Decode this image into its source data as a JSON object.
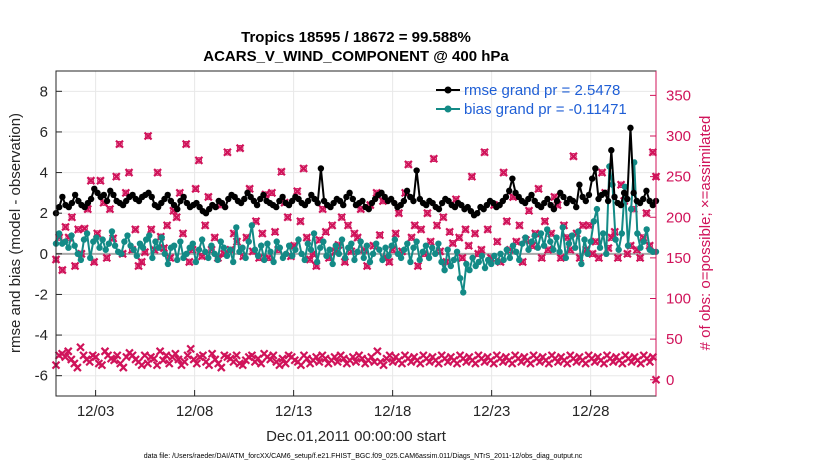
{
  "chart_data": {
    "type": "line",
    "title_line1": "Tropics 18595 / 18672 = 99.588%",
    "title_line2": "ACARS_V_WIND_COMPONENT @ 400 hPa",
    "xlabel": "Dec.01,2011 00:00:00 start",
    "ylabel_left": "rmse and bias (model - observation)",
    "ylabel_right": "# of obs: o=possible; ×=assimilated",
    "footnote": "data file: /Users/raeder/DAI/ATM_forcXX/CAM6_setup/f.e21.FHIST_BGC.f09_025.CAM6assim.011/Diags_NTrS_2011-12/obs_diag_output.nc",
    "x_tick_labels": [
      "12/03",
      "12/08",
      "12/13",
      "12/18",
      "12/23",
      "12/28"
    ],
    "x_tick_days": [
      3,
      8,
      13,
      18,
      23,
      28
    ],
    "xlim_days": [
      1,
      31.3
    ],
    "ylim_left": [
      -7,
      9
    ],
    "y_ticks_left": [
      -6,
      -4,
      -2,
      0,
      2,
      4,
      6,
      8
    ],
    "ylim_right": [
      -20,
      380
    ],
    "y_ticks_right": [
      0,
      50,
      100,
      150,
      200,
      250,
      300,
      350
    ],
    "legend_position": "top-right",
    "colors": {
      "rmse": "#000000",
      "bias": "#138a86",
      "obs": "#d0135a",
      "zero_line": "#aaaaaa",
      "legend_text": "#1f5fd6",
      "right_axis": "#d0135a"
    },
    "series": [
      {
        "name": "rmse grand pr = 2.5478",
        "values": [
          2.0,
          2.3,
          2.8,
          2.4,
          2.3,
          2.5,
          2.9,
          2.6,
          2.4,
          2.3,
          2.5,
          2.7,
          3.2,
          3.0,
          2.8,
          2.9,
          2.6,
          3.1,
          2.9,
          2.6,
          2.5,
          2.4,
          2.6,
          2.8,
          2.9,
          2.7,
          2.6,
          2.8,
          2.9,
          3.0,
          2.8,
          2.4,
          2.3,
          2.5,
          2.7,
          2.9,
          2.6,
          2.4,
          2.2,
          2.6,
          2.8,
          2.5,
          2.3,
          2.4,
          2.5,
          2.3,
          2.1,
          2.0,
          2.2,
          2.4,
          2.3,
          2.6,
          2.5,
          2.3,
          2.7,
          2.9,
          2.8,
          2.6,
          2.5,
          2.7,
          3.0,
          2.8,
          2.6,
          2.4,
          2.7,
          2.9,
          2.6,
          2.5,
          2.4,
          2.3,
          2.6,
          2.8,
          2.5,
          2.4,
          2.6,
          2.8,
          2.7,
          2.5,
          2.4,
          2.6,
          2.9,
          2.7,
          2.5,
          4.2,
          2.6,
          2.4,
          2.3,
          2.5,
          2.7,
          2.6,
          2.4,
          2.8,
          3.0,
          2.7,
          2.4,
          2.5,
          2.6,
          2.3,
          2.2,
          2.5,
          2.7,
          2.9,
          3.0,
          2.8,
          2.6,
          2.7,
          2.5,
          2.3,
          2.4,
          2.6,
          3.1,
          2.8,
          2.6,
          4.1,
          2.7,
          2.5,
          2.4,
          2.6,
          2.5,
          2.3,
          2.2,
          2.5,
          2.7,
          2.6,
          2.4,
          2.3,
          2.5,
          2.4,
          2.2,
          2.3,
          2.1,
          1.9,
          2.0,
          2.3,
          2.2,
          2.4,
          2.6,
          2.5,
          2.3,
          2.4,
          2.6,
          2.8,
          3.1,
          3.7,
          3.0,
          2.8,
          2.6,
          2.5,
          2.7,
          2.9,
          2.6,
          2.4,
          2.3,
          2.5,
          2.7,
          2.4,
          2.2,
          2.6,
          3.0,
          2.8,
          2.5,
          2.7,
          2.6,
          2.3,
          3.4,
          2.8,
          2.6,
          2.9,
          3.7,
          4.2,
          2.7,
          2.9,
          3.0,
          2.6,
          5.1,
          2.8,
          2.5,
          2.4,
          3.0,
          2.7,
          6.2,
          3.0,
          2.6,
          2.5,
          2.7,
          3.1,
          2.6,
          2.4,
          2.6
        ]
      },
      {
        "name": "bias grand pr = -0.11471",
        "values": [
          0.5,
          1.0,
          0.5,
          0.6,
          0.3,
          0.9,
          0.4,
          0.0,
          -0.3,
          0.7,
          1.0,
          -0.2,
          0.6,
          0.8,
          0.3,
          0.7,
          0.2,
          0.5,
          1.1,
          0.4,
          0.1,
          0.0,
          0.6,
          0.9,
          0.4,
          0.2,
          -0.1,
          0.5,
          0.3,
          0.7,
          0.9,
          -0.2,
          0.6,
          0.3,
          0.8,
          0.0,
          -0.5,
          0.3,
          0.4,
          -0.3,
          0.6,
          -0.2,
          0.0,
          0.3,
          0.5,
          -0.4,
          0.2,
          0.7,
          0.1,
          -0.2,
          0.4,
          0.0,
          -0.3,
          0.6,
          0.3,
          -0.1,
          0.2,
          -0.4,
          1.3,
          0.1,
          0.3,
          -0.2,
          0.6,
          1.4,
          0.2,
          -0.1,
          0.4,
          -0.3,
          0.5,
          0.1,
          -0.4,
          0.6,
          0.3,
          -0.2,
          0.0,
          0.4,
          -0.1,
          0.2,
          0.7,
          0.0,
          -0.3,
          0.5,
          0.2,
          1.0,
          -0.4,
          0.3,
          0.6,
          -0.1,
          0.2,
          -0.5,
          0.4,
          0.0,
          0.7,
          -0.2,
          0.3,
          0.5,
          -0.3,
          0.1,
          0.6,
          -0.2,
          0.4,
          -0.4,
          0.0,
          0.5,
          0.2,
          -0.3,
          0.3,
          -0.1,
          0.4,
          0.7,
          0.0,
          -0.2,
          0.2,
          0.5,
          -0.4,
          0.3,
          0.6,
          -0.3,
          0.1,
          0.4,
          -0.2,
          0.3,
          0.0,
          0.5,
          -0.4,
          -0.8,
          0.2,
          -0.6,
          -0.3,
          0.1,
          -1.2,
          -1.9,
          -0.5,
          -0.8,
          -0.2,
          -0.6,
          -0.4,
          -0.1,
          -0.7,
          -0.3,
          -0.5,
          -0.1,
          -0.4,
          0.0,
          -0.3,
          0.2,
          -0.2,
          0.4,
          0.1,
          -0.3,
          0.5,
          0.8,
          0.2,
          0.6,
          0.9,
          0.3,
          1.0,
          0.4,
          1.2,
          0.6,
          0.2,
          0.8,
          0.1,
          1.3,
          -0.2,
          0.5,
          0.9,
          0.3,
          1.1,
          -0.5,
          0.7,
          0.0,
          0.6,
          1.6,
          2.2,
          0.3,
          1.0,
          0.0,
          4.3,
          3.4,
          0.7,
          0.2,
          1.0,
          3.3,
          0.4,
          2.2,
          4.5,
          1.0,
          0.3,
          0.6,
          1.2,
          0.2,
          0.1,
          0.1
        ]
      },
      {
        "name": "observations possible",
        "marker": "o",
        "values": [
          148,
          175,
          135,
          188,
          175,
          200,
          140,
          185,
          155,
          186,
          210,
          245,
          145,
          180,
          245,
          218,
          150,
          210,
          174,
          250,
          290,
          155,
          230,
          255,
          160,
          185,
          140,
          145,
          157,
          300,
          185,
          160,
          255,
          176,
          162,
          190,
          150,
          208,
          200,
          230,
          180,
          290,
          145,
          160,
          235,
          270,
          152,
          190,
          225,
          160,
          175,
          150,
          215,
          155,
          280,
          160,
          180,
          170,
          285,
          152,
          175,
          235,
          158,
          195,
          150,
          180,
          228,
          150,
          230,
          182,
          160,
          256,
          218,
          200,
          152,
          165,
          232,
          195,
          260,
          175,
          148,
          155,
          140,
          172,
          210,
          182,
          150,
          190,
          158,
          166,
          200,
          145,
          190,
          158,
          180,
          175,
          210,
          160,
          140,
          215,
          165,
          230,
          178,
          220,
          150,
          145,
          160,
          180,
          205,
          158,
          230,
          265,
          175,
          190,
          140,
          185,
          155,
          205,
          170,
          272,
          190,
          158,
          200,
          145,
          182,
          168,
          222,
          175,
          150,
          185,
          165,
          250,
          180,
          155,
          160,
          280,
          185,
          150,
          215,
          170,
          145,
          255,
          195,
          160,
          225,
          170,
          190,
          145,
          172,
          208,
          165,
          180,
          235,
          150,
          195,
          160,
          180,
          225,
          215,
          150,
          190,
          175,
          160,
          275,
          180,
          150,
          190,
          160,
          190,
          155,
          170,
          150,
          255,
          230,
          162,
          175,
          182,
          150,
          240,
          220,
          155,
          165,
          210,
          160,
          150,
          175,
          205,
          165,
          280,
          250
        ]
      },
      {
        "name": "observations assimilated",
        "marker": "x",
        "values": [
          18,
          30,
          32,
          28,
          35,
          25,
          20,
          15,
          40,
          30,
          25,
          22,
          30,
          28,
          20,
          18,
          35,
          30,
          26,
          24,
          30,
          20,
          15,
          28,
          33,
          30,
          25,
          22,
          18,
          30,
          20,
          28,
          26,
          18,
          35,
          24,
          30,
          20,
          28,
          32,
          25,
          18,
          22,
          30,
          38,
          25,
          20,
          28,
          30,
          22,
          18,
          32,
          25,
          20,
          15,
          30,
          28,
          26,
          22,
          30,
          20,
          18,
          24,
          28,
          30,
          22,
          26,
          20,
          32,
          28,
          25,
          30,
          22,
          18,
          26,
          20,
          30,
          28,
          24,
          22,
          18,
          30,
          26,
          20,
          24,
          28,
          22,
          30,
          26,
          20,
          24,
          28,
          22,
          30,
          26,
          20,
          24,
          28,
          22,
          30,
          26,
          20,
          24,
          28,
          22,
          35,
          22,
          18,
          26,
          30,
          22,
          28,
          24,
          20,
          30,
          26,
          22,
          28,
          24,
          20,
          30,
          26,
          22,
          28,
          24,
          20,
          30,
          26,
          22,
          28,
          24,
          20,
          30,
          26,
          22,
          28,
          24,
          20,
          30,
          26,
          22,
          28,
          24,
          20,
          30,
          26,
          22,
          28,
          24,
          20,
          30,
          26,
          22,
          28,
          24,
          20,
          30,
          26,
          22,
          28,
          24,
          20,
          30,
          26,
          22,
          28,
          24,
          20,
          30,
          26,
          22,
          28,
          24,
          20,
          30,
          26,
          22,
          28,
          24,
          20,
          30,
          26,
          22,
          28,
          24,
          20,
          30,
          26,
          22,
          28,
          24,
          20,
          30,
          26,
          22,
          28,
          0
        ]
      }
    ]
  }
}
